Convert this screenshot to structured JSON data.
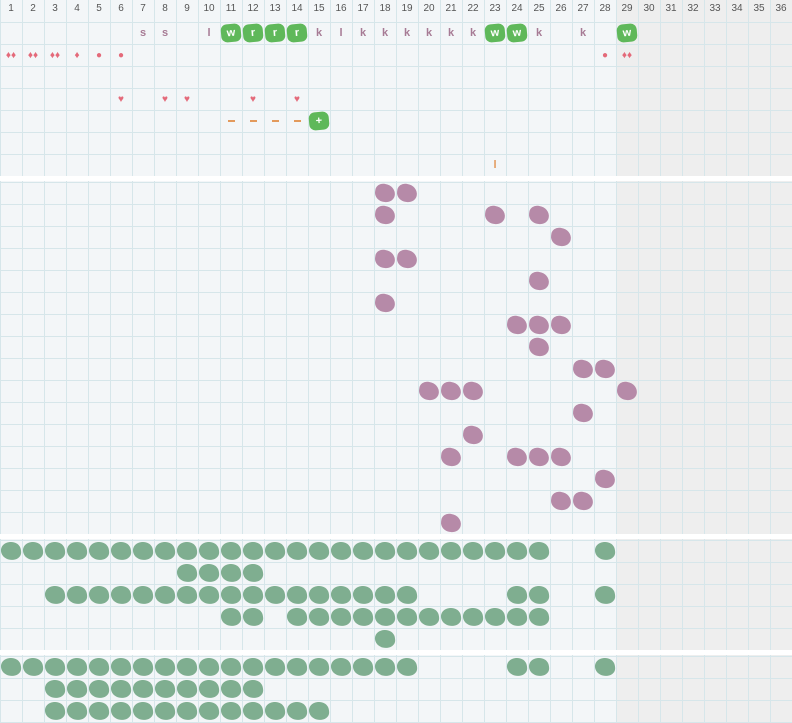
{
  "days": [
    "1",
    "2",
    "3",
    "4",
    "5",
    "6",
    "7",
    "8",
    "9",
    "10",
    "11",
    "12",
    "13",
    "14",
    "15",
    "16",
    "17",
    "18",
    "19",
    "20",
    "21",
    "22",
    "23",
    "24",
    "25",
    "26",
    "27",
    "28",
    "29",
    "30",
    "31",
    "32",
    "33",
    "34",
    "35",
    "36"
  ],
  "shaded_from_day": 29,
  "letters": [
    {
      "day": 7,
      "row": 1,
      "text": "s"
    },
    {
      "day": 8,
      "row": 1,
      "text": "s"
    },
    {
      "day": 10,
      "row": 1,
      "text": "l"
    },
    {
      "day": 15,
      "row": 1,
      "text": "k"
    },
    {
      "day": 16,
      "row": 1,
      "text": "l"
    },
    {
      "day": 17,
      "row": 1,
      "text": "k"
    },
    {
      "day": 18,
      "row": 1,
      "text": "k"
    },
    {
      "day": 19,
      "row": 1,
      "text": "k"
    },
    {
      "day": 20,
      "row": 1,
      "text": "k"
    },
    {
      "day": 21,
      "row": 1,
      "text": "k"
    },
    {
      "day": 22,
      "row": 1,
      "text": "k"
    },
    {
      "day": 25,
      "row": 1,
      "text": "k"
    },
    {
      "day": 27,
      "row": 1,
      "text": "k"
    }
  ],
  "badges": [
    {
      "day": 11,
      "row": 1,
      "text": "w"
    },
    {
      "day": 12,
      "row": 1,
      "text": "r"
    },
    {
      "day": 13,
      "row": 1,
      "text": "r"
    },
    {
      "day": 14,
      "row": 1,
      "text": "r"
    },
    {
      "day": 23,
      "row": 1,
      "text": "w"
    },
    {
      "day": 24,
      "row": 1,
      "text": "w"
    },
    {
      "day": 29,
      "row": 1,
      "text": "w"
    },
    {
      "day": 15,
      "row": 5,
      "text": "+"
    }
  ],
  "symbols": [
    {
      "day": 1,
      "row": 2,
      "text": "♦♦"
    },
    {
      "day": 2,
      "row": 2,
      "text": "♦♦"
    },
    {
      "day": 3,
      "row": 2,
      "text": "♦♦"
    },
    {
      "day": 4,
      "row": 2,
      "text": "♦"
    },
    {
      "day": 5,
      "row": 2,
      "text": "●"
    },
    {
      "day": 6,
      "row": 2,
      "text": "●"
    },
    {
      "day": 28,
      "row": 2,
      "text": "●"
    },
    {
      "day": 29,
      "row": 2,
      "text": "♦♦"
    },
    {
      "day": 6,
      "row": 4,
      "text": "♥"
    },
    {
      "day": 8,
      "row": 4,
      "text": "♥"
    },
    {
      "day": 9,
      "row": 4,
      "text": "♥"
    },
    {
      "day": 12,
      "row": 4,
      "text": "♥"
    },
    {
      "day": 14,
      "row": 4,
      "text": "♥"
    }
  ],
  "dashes": [
    {
      "day": 11,
      "row": 5
    },
    {
      "day": 12,
      "row": 5
    },
    {
      "day": 13,
      "row": 5
    },
    {
      "day": 14,
      "row": 5
    }
  ],
  "orange_letters": [
    {
      "day": 23,
      "row": 7,
      "text": "l"
    }
  ],
  "purple_cells": [
    [
      18,
      1
    ],
    [
      19,
      1
    ],
    [
      18,
      2
    ],
    [
      23,
      2
    ],
    [
      25,
      2
    ],
    [
      26,
      3
    ],
    [
      18,
      4
    ],
    [
      19,
      4
    ],
    [
      25,
      5
    ],
    [
      18,
      6
    ],
    [
      24,
      7
    ],
    [
      25,
      7
    ],
    [
      26,
      7
    ],
    [
      25,
      8
    ],
    [
      27,
      9
    ],
    [
      28,
      9
    ],
    [
      20,
      10
    ],
    [
      21,
      10
    ],
    [
      22,
      10
    ],
    [
      29,
      10
    ],
    [
      27,
      11
    ],
    [
      22,
      12
    ],
    [
      21,
      13
    ],
    [
      24,
      13
    ],
    [
      25,
      13
    ],
    [
      26,
      13
    ],
    [
      28,
      14
    ],
    [
      26,
      15
    ],
    [
      27,
      15
    ],
    [
      21,
      16
    ]
  ],
  "green_sections": [
    {
      "top": 540,
      "rows": [
        [
          1,
          2,
          3,
          4,
          5,
          6,
          7,
          8,
          9,
          10,
          11,
          12,
          13,
          14,
          15,
          16,
          17,
          18,
          19,
          20,
          21,
          22,
          23,
          24,
          25,
          28
        ],
        [
          9,
          10,
          11,
          12
        ],
        [
          3,
          4,
          5,
          6,
          7,
          8,
          9,
          10,
          11,
          12,
          13,
          14,
          15,
          16,
          17,
          18,
          19,
          24,
          25,
          28
        ],
        [
          11,
          12,
          14,
          15,
          16,
          17,
          18,
          19,
          20,
          21,
          22,
          23,
          24,
          25
        ],
        [
          18
        ]
      ]
    },
    {
      "top": 656,
      "rows": [
        [
          1,
          2,
          3,
          4,
          5,
          6,
          7,
          8,
          9,
          10,
          11,
          12,
          13,
          14,
          15,
          16,
          17,
          18,
          19,
          24,
          25,
          28
        ],
        [
          3,
          4,
          5,
          6,
          7,
          8,
          9,
          10,
          11,
          12
        ],
        [
          3,
          4,
          5,
          6,
          7,
          8,
          9,
          10,
          11,
          12,
          13,
          14,
          15
        ]
      ]
    }
  ]
}
